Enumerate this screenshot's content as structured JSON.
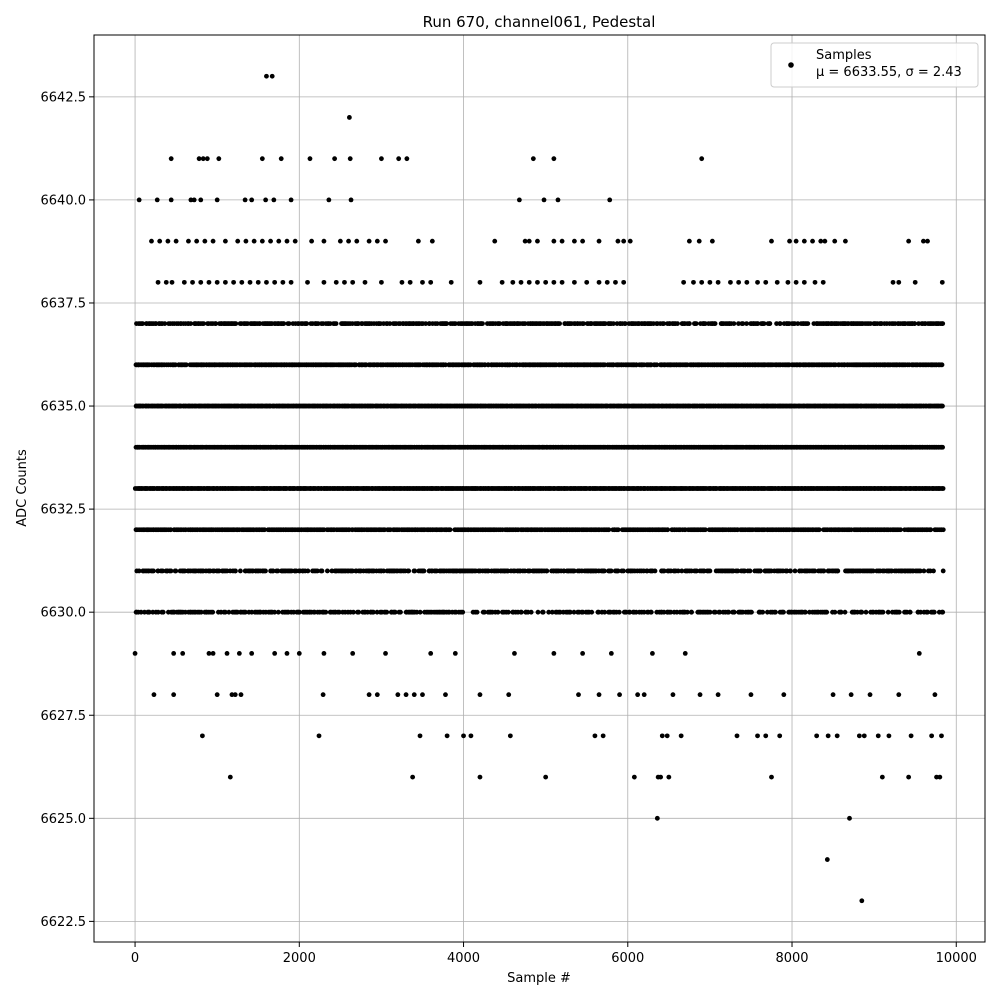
{
  "chart_data": {
    "type": "scatter",
    "title": "Run 670, channel061, Pedestal",
    "xlabel": "Sample #",
    "ylabel": "ADC Counts",
    "xlim": [
      -500,
      10350
    ],
    "ylim": [
      6622,
      6644
    ],
    "xticks": [
      0,
      2000,
      4000,
      6000,
      8000,
      10000
    ],
    "yticks": [
      6622.5,
      6625.0,
      6627.5,
      6630.0,
      6632.5,
      6635.0,
      6637.5,
      6640.0,
      6642.5
    ],
    "grid": true,
    "legend_position": "top-right",
    "marker_color": "#000000",
    "n_samples": 9830,
    "series": [
      {
        "name": "Samples",
        "label_line2": "μ = 6633.55, σ = 2.43",
        "dense_levels": [
          {
            "y": 6630,
            "x_range": [
              0,
              9830
            ],
            "density": 0.55
          },
          {
            "y": 6631,
            "x_range": [
              0,
              9830
            ],
            "density": 0.65
          },
          {
            "y": 6632,
            "x_range": [
              0,
              9830
            ],
            "density": 0.9
          },
          {
            "y": 6633,
            "x_range": [
              0,
              9830
            ],
            "density": 1.0
          },
          {
            "y": 6634,
            "x_range": [
              0,
              9830
            ],
            "density": 1.0
          },
          {
            "y": 6635,
            "x_range": [
              0,
              9830
            ],
            "density": 1.0
          },
          {
            "y": 6636,
            "x_range": [
              0,
              9830
            ],
            "density": 0.9
          },
          {
            "y": 6637,
            "x_range": [
              0,
              9830
            ],
            "density": 0.7
          }
        ],
        "points": [
          {
            "x": 0,
            "y": 6629
          },
          {
            "x": 230,
            "y": 6628
          },
          {
            "x": 470,
            "y": 6628
          },
          {
            "x": 470,
            "y": 6629
          },
          {
            "x": 580,
            "y": 6629
          },
          {
            "x": 820,
            "y": 6627
          },
          {
            "x": 900,
            "y": 6629
          },
          {
            "x": 950,
            "y": 6629
          },
          {
            "x": 1000,
            "y": 6628
          },
          {
            "x": 1120,
            "y": 6629
          },
          {
            "x": 1160,
            "y": 6626
          },
          {
            "x": 1180,
            "y": 6628
          },
          {
            "x": 1220,
            "y": 6628
          },
          {
            "x": 1270,
            "y": 6629
          },
          {
            "x": 1290,
            "y": 6628
          },
          {
            "x": 1420,
            "y": 6629
          },
          {
            "x": 1700,
            "y": 6629
          },
          {
            "x": 1850,
            "y": 6629
          },
          {
            "x": 2000,
            "y": 6629
          },
          {
            "x": 2240,
            "y": 6627
          },
          {
            "x": 2290,
            "y": 6628
          },
          {
            "x": 2300,
            "y": 6629
          },
          {
            "x": 2650,
            "y": 6629
          },
          {
            "x": 2850,
            "y": 6628
          },
          {
            "x": 2950,
            "y": 6628
          },
          {
            "x": 3050,
            "y": 6629
          },
          {
            "x": 3200,
            "y": 6628
          },
          {
            "x": 3300,
            "y": 6628
          },
          {
            "x": 3380,
            "y": 6626
          },
          {
            "x": 3400,
            "y": 6628
          },
          {
            "x": 3470,
            "y": 6627
          },
          {
            "x": 3500,
            "y": 6628
          },
          {
            "x": 3600,
            "y": 6629
          },
          {
            "x": 3800,
            "y": 6627
          },
          {
            "x": 3780,
            "y": 6628
          },
          {
            "x": 3900,
            "y": 6629
          },
          {
            "x": 4000,
            "y": 6627
          },
          {
            "x": 4090,
            "y": 6627
          },
          {
            "x": 4200,
            "y": 6626
          },
          {
            "x": 4200,
            "y": 6628
          },
          {
            "x": 4570,
            "y": 6627
          },
          {
            "x": 4550,
            "y": 6628
          },
          {
            "x": 4620,
            "y": 6629
          },
          {
            "x": 5000,
            "y": 6626
          },
          {
            "x": 5100,
            "y": 6629
          },
          {
            "x": 5400,
            "y": 6628
          },
          {
            "x": 5450,
            "y": 6629
          },
          {
            "x": 5600,
            "y": 6627
          },
          {
            "x": 5650,
            "y": 6628
          },
          {
            "x": 5700,
            "y": 6627
          },
          {
            "x": 5800,
            "y": 6629
          },
          {
            "x": 5900,
            "y": 6628
          },
          {
            "x": 6080,
            "y": 6626
          },
          {
            "x": 6120,
            "y": 6628
          },
          {
            "x": 6200,
            "y": 6628
          },
          {
            "x": 6300,
            "y": 6629
          },
          {
            "x": 6360,
            "y": 6625
          },
          {
            "x": 6370,
            "y": 6626
          },
          {
            "x": 6400,
            "y": 6626
          },
          {
            "x": 6420,
            "y": 6627
          },
          {
            "x": 6480,
            "y": 6627
          },
          {
            "x": 6500,
            "y": 6626
          },
          {
            "x": 6550,
            "y": 6628
          },
          {
            "x": 6650,
            "y": 6627
          },
          {
            "x": 6700,
            "y": 6629
          },
          {
            "x": 6880,
            "y": 6628
          },
          {
            "x": 7100,
            "y": 6628
          },
          {
            "x": 7330,
            "y": 6627
          },
          {
            "x": 7500,
            "y": 6628
          },
          {
            "x": 7580,
            "y": 6627
          },
          {
            "x": 7680,
            "y": 6627
          },
          {
            "x": 7750,
            "y": 6626
          },
          {
            "x": 7850,
            "y": 6627
          },
          {
            "x": 7900,
            "y": 6628
          },
          {
            "x": 8300,
            "y": 6627
          },
          {
            "x": 8430,
            "y": 6624
          },
          {
            "x": 8440,
            "y": 6627
          },
          {
            "x": 8500,
            "y": 6628
          },
          {
            "x": 8550,
            "y": 6627
          },
          {
            "x": 8700,
            "y": 6625
          },
          {
            "x": 8720,
            "y": 6628
          },
          {
            "x": 8820,
            "y": 6627
          },
          {
            "x": 8850,
            "y": 6623
          },
          {
            "x": 8880,
            "y": 6627
          },
          {
            "x": 8950,
            "y": 6628
          },
          {
            "x": 9050,
            "y": 6627
          },
          {
            "x": 9100,
            "y": 6626
          },
          {
            "x": 9180,
            "y": 6627
          },
          {
            "x": 9300,
            "y": 6628
          },
          {
            "x": 9420,
            "y": 6626
          },
          {
            "x": 9450,
            "y": 6627
          },
          {
            "x": 9550,
            "y": 6629
          },
          {
            "x": 9700,
            "y": 6627
          },
          {
            "x": 9740,
            "y": 6628
          },
          {
            "x": 9760,
            "y": 6626
          },
          {
            "x": 9800,
            "y": 6626
          },
          {
            "x": 9820,
            "y": 6627
          },
          {
            "x": 50,
            "y": 6640
          },
          {
            "x": 270,
            "y": 6640
          },
          {
            "x": 440,
            "y": 6641
          },
          {
            "x": 440,
            "y": 6640
          },
          {
            "x": 680,
            "y": 6640
          },
          {
            "x": 720,
            "y": 6640
          },
          {
            "x": 780,
            "y": 6641
          },
          {
            "x": 800,
            "y": 6640
          },
          {
            "x": 830,
            "y": 6641
          },
          {
            "x": 880,
            "y": 6641
          },
          {
            "x": 1000,
            "y": 6640
          },
          {
            "x": 1020,
            "y": 6641
          },
          {
            "x": 1340,
            "y": 6640
          },
          {
            "x": 1420,
            "y": 6640
          },
          {
            "x": 1550,
            "y": 6641
          },
          {
            "x": 1590,
            "y": 6640
          },
          {
            "x": 1600,
            "y": 6643
          },
          {
            "x": 1670,
            "y": 6643
          },
          {
            "x": 1690,
            "y": 6640
          },
          {
            "x": 1780,
            "y": 6641
          },
          {
            "x": 1900,
            "y": 6640
          },
          {
            "x": 2130,
            "y": 6641
          },
          {
            "x": 2360,
            "y": 6640
          },
          {
            "x": 2430,
            "y": 6641
          },
          {
            "x": 2620,
            "y": 6641
          },
          {
            "x": 2610,
            "y": 6642
          },
          {
            "x": 2630,
            "y": 6640
          },
          {
            "x": 3000,
            "y": 6641
          },
          {
            "x": 3210,
            "y": 6641
          },
          {
            "x": 3310,
            "y": 6641
          },
          {
            "x": 4680,
            "y": 6640
          },
          {
            "x": 4850,
            "y": 6641
          },
          {
            "x": 4980,
            "y": 6640
          },
          {
            "x": 5100,
            "y": 6641
          },
          {
            "x": 5150,
            "y": 6640
          },
          {
            "x": 5780,
            "y": 6640
          },
          {
            "x": 6900,
            "y": 6641
          },
          {
            "x": 200,
            "y": 6639
          },
          {
            "x": 300,
            "y": 6639
          },
          {
            "x": 400,
            "y": 6639
          },
          {
            "x": 500,
            "y": 6639
          },
          {
            "x": 650,
            "y": 6639
          },
          {
            "x": 750,
            "y": 6639
          },
          {
            "x": 850,
            "y": 6639
          },
          {
            "x": 950,
            "y": 6639
          },
          {
            "x": 1100,
            "y": 6639
          },
          {
            "x": 1250,
            "y": 6639
          },
          {
            "x": 1350,
            "y": 6639
          },
          {
            "x": 1450,
            "y": 6639
          },
          {
            "x": 1550,
            "y": 6639
          },
          {
            "x": 1650,
            "y": 6639
          },
          {
            "x": 1750,
            "y": 6639
          },
          {
            "x": 1850,
            "y": 6639
          },
          {
            "x": 1950,
            "y": 6639
          },
          {
            "x": 2150,
            "y": 6639
          },
          {
            "x": 2300,
            "y": 6639
          },
          {
            "x": 2500,
            "y": 6639
          },
          {
            "x": 2600,
            "y": 6639
          },
          {
            "x": 2700,
            "y": 6639
          },
          {
            "x": 2850,
            "y": 6639
          },
          {
            "x": 2950,
            "y": 6639
          },
          {
            "x": 3050,
            "y": 6639
          },
          {
            "x": 3450,
            "y": 6639
          },
          {
            "x": 3620,
            "y": 6639
          },
          {
            "x": 4380,
            "y": 6639
          },
          {
            "x": 4750,
            "y": 6639
          },
          {
            "x": 4800,
            "y": 6639
          },
          {
            "x": 4900,
            "y": 6639
          },
          {
            "x": 5100,
            "y": 6639
          },
          {
            "x": 5200,
            "y": 6639
          },
          {
            "x": 5350,
            "y": 6639
          },
          {
            "x": 5450,
            "y": 6639
          },
          {
            "x": 5650,
            "y": 6639
          },
          {
            "x": 5880,
            "y": 6639
          },
          {
            "x": 5950,
            "y": 6639
          },
          {
            "x": 6030,
            "y": 6639
          },
          {
            "x": 6750,
            "y": 6639
          },
          {
            "x": 6870,
            "y": 6639
          },
          {
            "x": 7030,
            "y": 6639
          },
          {
            "x": 7750,
            "y": 6639
          },
          {
            "x": 7970,
            "y": 6639
          },
          {
            "x": 8050,
            "y": 6639
          },
          {
            "x": 8150,
            "y": 6639
          },
          {
            "x": 8250,
            "y": 6639
          },
          {
            "x": 8350,
            "y": 6639
          },
          {
            "x": 8400,
            "y": 6639
          },
          {
            "x": 8520,
            "y": 6639
          },
          {
            "x": 8650,
            "y": 6639
          },
          {
            "x": 9420,
            "y": 6639
          },
          {
            "x": 9600,
            "y": 6639
          },
          {
            "x": 9650,
            "y": 6639
          },
          {
            "x": 280,
            "y": 6638
          },
          {
            "x": 380,
            "y": 6638
          },
          {
            "x": 450,
            "y": 6638
          },
          {
            "x": 600,
            "y": 6638
          },
          {
            "x": 700,
            "y": 6638
          },
          {
            "x": 800,
            "y": 6638
          },
          {
            "x": 900,
            "y": 6638
          },
          {
            "x": 1000,
            "y": 6638
          },
          {
            "x": 1100,
            "y": 6638
          },
          {
            "x": 1200,
            "y": 6638
          },
          {
            "x": 1300,
            "y": 6638
          },
          {
            "x": 1400,
            "y": 6638
          },
          {
            "x": 1500,
            "y": 6638
          },
          {
            "x": 1600,
            "y": 6638
          },
          {
            "x": 1700,
            "y": 6638
          },
          {
            "x": 1800,
            "y": 6638
          },
          {
            "x": 1900,
            "y": 6638
          },
          {
            "x": 2100,
            "y": 6638
          },
          {
            "x": 2300,
            "y": 6638
          },
          {
            "x": 2450,
            "y": 6638
          },
          {
            "x": 2550,
            "y": 6638
          },
          {
            "x": 2650,
            "y": 6638
          },
          {
            "x": 2800,
            "y": 6638
          },
          {
            "x": 3000,
            "y": 6638
          },
          {
            "x": 3250,
            "y": 6638
          },
          {
            "x": 3350,
            "y": 6638
          },
          {
            "x": 3500,
            "y": 6638
          },
          {
            "x": 3600,
            "y": 6638
          },
          {
            "x": 3850,
            "y": 6638
          },
          {
            "x": 4200,
            "y": 6638
          },
          {
            "x": 4470,
            "y": 6638
          },
          {
            "x": 4600,
            "y": 6638
          },
          {
            "x": 4700,
            "y": 6638
          },
          {
            "x": 4800,
            "y": 6638
          },
          {
            "x": 4900,
            "y": 6638
          },
          {
            "x": 5000,
            "y": 6638
          },
          {
            "x": 5100,
            "y": 6638
          },
          {
            "x": 5200,
            "y": 6638
          },
          {
            "x": 5350,
            "y": 6638
          },
          {
            "x": 5500,
            "y": 6638
          },
          {
            "x": 5650,
            "y": 6638
          },
          {
            "x": 5750,
            "y": 6638
          },
          {
            "x": 5850,
            "y": 6638
          },
          {
            "x": 5950,
            "y": 6638
          },
          {
            "x": 6680,
            "y": 6638
          },
          {
            "x": 6800,
            "y": 6638
          },
          {
            "x": 6900,
            "y": 6638
          },
          {
            "x": 7000,
            "y": 6638
          },
          {
            "x": 7100,
            "y": 6638
          },
          {
            "x": 7250,
            "y": 6638
          },
          {
            "x": 7350,
            "y": 6638
          },
          {
            "x": 7450,
            "y": 6638
          },
          {
            "x": 7580,
            "y": 6638
          },
          {
            "x": 7680,
            "y": 6638
          },
          {
            "x": 7820,
            "y": 6638
          },
          {
            "x": 7950,
            "y": 6638
          },
          {
            "x": 8050,
            "y": 6638
          },
          {
            "x": 8150,
            "y": 6638
          },
          {
            "x": 8280,
            "y": 6638
          },
          {
            "x": 8380,
            "y": 6638
          },
          {
            "x": 9230,
            "y": 6638
          },
          {
            "x": 9300,
            "y": 6638
          },
          {
            "x": 9500,
            "y": 6638
          },
          {
            "x": 9830,
            "y": 6638
          }
        ]
      }
    ]
  }
}
